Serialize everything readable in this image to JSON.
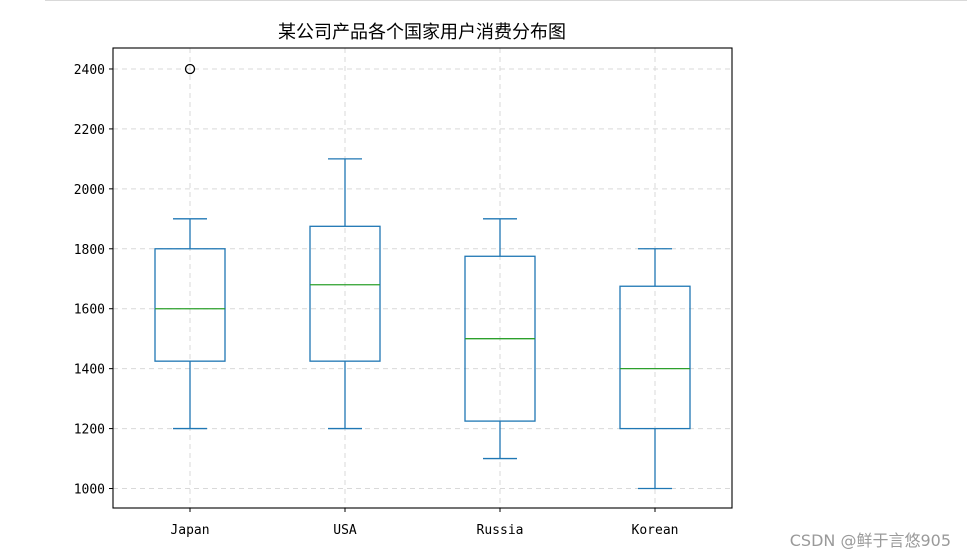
{
  "chart_data": {
    "type": "boxplot",
    "title": "某公司产品各个国家用户消费分布图",
    "xlabel": "",
    "ylabel": "",
    "categories": [
      "Japan",
      "USA",
      "Russia",
      "Korean"
    ],
    "boxes": [
      {
        "label": "Japan",
        "whisker_low": 1200,
        "q1": 1425,
        "median": 1600,
        "q3": 1800,
        "whisker_high": 1900,
        "outliers": [
          2400
        ]
      },
      {
        "label": "USA",
        "whisker_low": 1200,
        "q1": 1425,
        "median": 1680,
        "q3": 1875,
        "whisker_high": 2100,
        "outliers": []
      },
      {
        "label": "Russia",
        "whisker_low": 1100,
        "q1": 1225,
        "median": 1500,
        "q3": 1775,
        "whisker_high": 1900,
        "outliers": []
      },
      {
        "label": "Korean",
        "whisker_low": 1000,
        "q1": 1200,
        "median": 1400,
        "q3": 1675,
        "whisker_high": 1800,
        "outliers": []
      }
    ],
    "yticks": [
      1000,
      1200,
      1400,
      1600,
      1800,
      2000,
      2200,
      2400
    ],
    "ylim": [
      935,
      2470
    ],
    "grid": true,
    "colors": {
      "box": "#1f77b4",
      "median": "#2ca02c",
      "grid": "#d9d9d9",
      "axis": "#000000",
      "outlier": "#000000"
    }
  },
  "watermark": "CSDN @鲜于言悠905"
}
